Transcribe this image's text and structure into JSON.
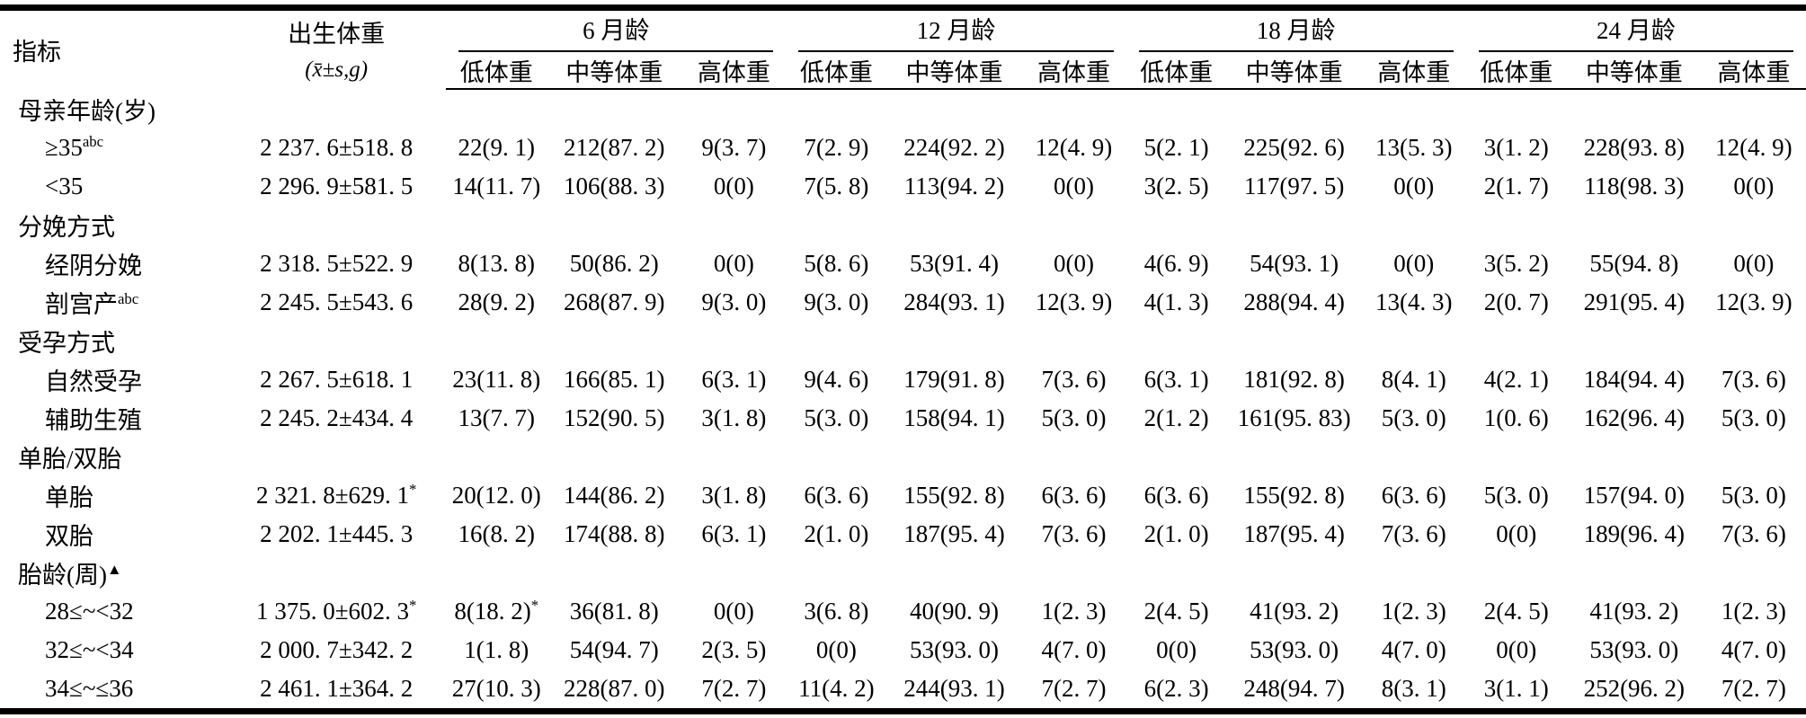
{
  "colors": {
    "text": "#000000",
    "background": "#ffffff",
    "rule": "#000000"
  },
  "table": {
    "col1_header": "指标",
    "col2_header_line1": "出生体重",
    "col2_header_line2": "(x̄±s,g)",
    "age_groups": [
      "6 月龄",
      "12 月龄",
      "18 月龄",
      "24 月龄"
    ],
    "sub_headers": [
      "低体重",
      "中等体重",
      "高体重"
    ],
    "rows": [
      {
        "type": "group",
        "label": "母亲年龄(岁)"
      },
      {
        "type": "data",
        "label": "≥35^{abc}",
        "birth_weight": "2 237. 6±518. 8",
        "cells": [
          "22(9. 1)",
          "212(87. 2)",
          "9(3. 7)",
          "7(2. 9)",
          "224(92. 2)",
          "12(4. 9)",
          "5(2. 1)",
          "225(92. 6)",
          "13(5. 3)",
          "3(1. 2)",
          "228(93. 8)",
          "12(4. 9)"
        ]
      },
      {
        "type": "data",
        "label": "<35",
        "birth_weight": "2 296. 9±581. 5",
        "cells": [
          "14(11. 7)",
          "106(88. 3)",
          "0(0)",
          "7(5. 8)",
          "113(94. 2)",
          "0(0)",
          "3(2. 5)",
          "117(97. 5)",
          "0(0)",
          "2(1. 7)",
          "118(98. 3)",
          "0(0)"
        ]
      },
      {
        "type": "group",
        "label": "分娩方式"
      },
      {
        "type": "data",
        "label": "经阴分娩",
        "birth_weight": "2 318. 5±522. 9",
        "cells": [
          "8(13. 8)",
          "50(86. 2)",
          "0(0)",
          "5(8. 6)",
          "53(91. 4)",
          "0(0)",
          "4(6. 9)",
          "54(93. 1)",
          "0(0)",
          "3(5. 2)",
          "55(94. 8)",
          "0(0)"
        ]
      },
      {
        "type": "data",
        "label": "剖宫产^{abc}",
        "birth_weight": "2 245. 5±543. 6",
        "cells": [
          "28(9. 2)",
          "268(87. 9)",
          "9(3. 0)",
          "9(3. 0)",
          "284(93. 1)",
          "12(3. 9)",
          "4(1. 3)",
          "288(94. 4)",
          "13(4. 3)",
          "2(0. 7)",
          "291(95. 4)",
          "12(3. 9)"
        ]
      },
      {
        "type": "group",
        "label": "受孕方式"
      },
      {
        "type": "data",
        "label": "自然受孕",
        "birth_weight": "2 267. 5±618. 1",
        "cells": [
          "23(11. 8)",
          "166(85. 1)",
          "6(3. 1)",
          "9(4. 6)",
          "179(91. 8)",
          "7(3. 6)",
          "6(3. 1)",
          "181(92. 8)",
          "8(4. 1)",
          "4(2. 1)",
          "184(94. 4)",
          "7(3. 6)"
        ]
      },
      {
        "type": "data",
        "label": "辅助生殖",
        "birth_weight": "2 245. 2±434. 4",
        "cells": [
          "13(7. 7)",
          "152(90. 5)",
          "3(1. 8)",
          "5(3. 0)",
          "158(94. 1)",
          "5(3. 0)",
          "2(1. 2)",
          "161(95. 83)",
          "5(3. 0)",
          "1(0. 6)",
          "162(96. 4)",
          "5(3. 0)"
        ]
      },
      {
        "type": "group",
        "label": "单胎/双胎"
      },
      {
        "type": "data",
        "label": "单胎",
        "birth_weight": "2 321. 8±629. 1^{*}",
        "cells": [
          "20(12. 0)",
          "144(86. 2)",
          "3(1. 8)",
          "6(3. 6)",
          "155(92. 8)",
          "6(3. 6)",
          "6(3. 6)",
          "155(92. 8)",
          "6(3. 6)",
          "5(3. 0)",
          "157(94. 0)",
          "5(3. 0)"
        ]
      },
      {
        "type": "data",
        "label": "双胎",
        "birth_weight": "2 202. 1±445. 3",
        "cells": [
          "16(8. 2)",
          "174(88. 8)",
          "6(3. 1)",
          "2(1. 0)",
          "187(95. 4)",
          "7(3. 6)",
          "2(1. 0)",
          "187(95. 4)",
          "7(3. 6)",
          "0(0)",
          "189(96. 4)",
          "7(3. 6)"
        ]
      },
      {
        "type": "group",
        "label": "胎龄(周)^{▲}"
      },
      {
        "type": "data",
        "label": "28≤~<32",
        "birth_weight": "1 375. 0±602. 3^{*}",
        "cells": [
          "8(18. 2)^{*}",
          "36(81. 8)",
          "0(0)",
          "3(6. 8)",
          "40(90. 9)",
          "1(2. 3)",
          "2(4. 5)",
          "41(93. 2)",
          "1(2. 3)",
          "2(4. 5)",
          "41(93. 2)",
          "1(2. 3)"
        ]
      },
      {
        "type": "data",
        "label": "32≤~<34",
        "birth_weight": "2 000. 7±342. 2",
        "cells": [
          "1(1. 8)",
          "54(94. 7)",
          "2(3. 5)",
          "0(0)",
          "53(93. 0)",
          "4(7. 0)",
          "0(0)",
          "53(93. 0)",
          "4(7. 0)",
          "0(0)",
          "53(93. 0)",
          "4(7. 0)"
        ]
      },
      {
        "type": "data",
        "label": "34≤~≤36",
        "birth_weight": "2 461. 1±364. 2",
        "cells": [
          "27(10. 3)",
          "228(87. 0)",
          "7(2. 7)",
          "11(4. 2)",
          "244(93. 1)",
          "7(2. 7)",
          "6(2. 3)",
          "248(94. 7)",
          "8(3. 1)",
          "3(1. 1)",
          "252(96. 2)",
          "7(2. 7)"
        ]
      }
    ]
  }
}
